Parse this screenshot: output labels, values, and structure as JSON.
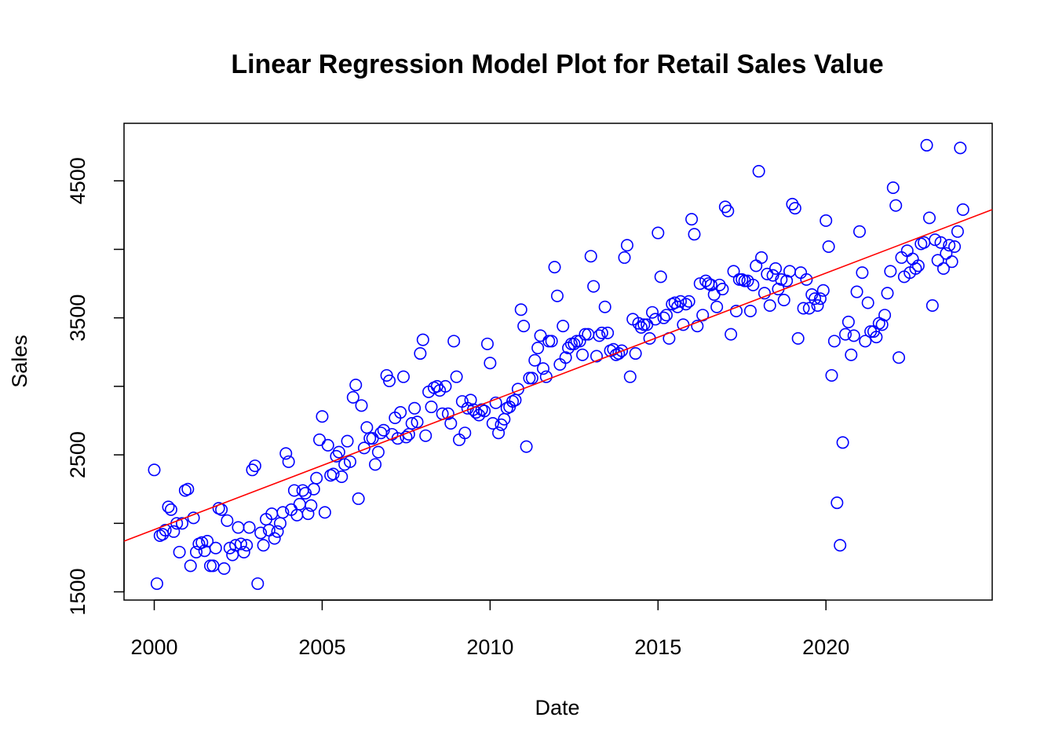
{
  "chart_data": {
    "type": "scatter",
    "title": "Linear Regression Model Plot for Retail Sales Value",
    "xlabel": "Date",
    "ylabel": "Sales",
    "xlim": [
      1999.1,
      2024.95
    ],
    "ylim": [
      1440,
      4920
    ],
    "x_ticks": [
      2000,
      2005,
      2010,
      2015,
      2020
    ],
    "y_ticks": [
      1500,
      2000,
      2500,
      3000,
      3500,
      4000,
      4500
    ],
    "y_tick_labels": [
      "1500",
      "",
      "2500",
      "",
      "3500",
      "",
      "4500"
    ],
    "grid": false,
    "legend": "none",
    "point_color": "#0000ff",
    "line_color": "#ff0000",
    "regression_line": {
      "x": [
        1999.1,
        2024.95
      ],
      "y": [
        1870,
        4290
      ]
    },
    "series": [
      {
        "points": [
          [
            2000.0,
            2390
          ],
          [
            2000.08,
            1560
          ],
          [
            2000.17,
            1910
          ],
          [
            2000.25,
            1920
          ],
          [
            2000.33,
            1950
          ],
          [
            2000.42,
            2120
          ],
          [
            2000.5,
            2100
          ],
          [
            2000.58,
            1940
          ],
          [
            2000.67,
            2000
          ],
          [
            2000.75,
            1790
          ],
          [
            2000.83,
            2000
          ],
          [
            2000.92,
            2240
          ],
          [
            2001.0,
            2250
          ],
          [
            2001.08,
            1690
          ],
          [
            2001.17,
            2040
          ],
          [
            2001.25,
            1790
          ],
          [
            2001.33,
            1850
          ],
          [
            2001.42,
            1860
          ],
          [
            2001.5,
            1800
          ],
          [
            2001.58,
            1870
          ],
          [
            2001.67,
            1690
          ],
          [
            2001.75,
            1690
          ],
          [
            2001.83,
            1820
          ],
          [
            2001.92,
            2110
          ],
          [
            2002.0,
            2100
          ],
          [
            2002.08,
            1670
          ],
          [
            2002.17,
            2020
          ],
          [
            2002.25,
            1820
          ],
          [
            2002.33,
            1770
          ],
          [
            2002.42,
            1840
          ],
          [
            2002.5,
            1970
          ],
          [
            2002.58,
            1850
          ],
          [
            2002.67,
            1790
          ],
          [
            2002.75,
            1840
          ],
          [
            2002.83,
            1970
          ],
          [
            2002.92,
            2390
          ],
          [
            2003.0,
            2420
          ],
          [
            2003.08,
            1560
          ],
          [
            2003.17,
            1930
          ],
          [
            2003.25,
            1840
          ],
          [
            2003.33,
            2030
          ],
          [
            2003.42,
            1950
          ],
          [
            2003.5,
            2070
          ],
          [
            2003.58,
            1890
          ],
          [
            2003.67,
            1940
          ],
          [
            2003.75,
            2000
          ],
          [
            2003.83,
            2080
          ],
          [
            2003.92,
            2510
          ],
          [
            2004.0,
            2450
          ],
          [
            2004.08,
            2100
          ],
          [
            2004.17,
            2240
          ],
          [
            2004.25,
            2060
          ],
          [
            2004.33,
            2140
          ],
          [
            2004.42,
            2240
          ],
          [
            2004.5,
            2220
          ],
          [
            2004.58,
            2070
          ],
          [
            2004.67,
            2130
          ],
          [
            2004.75,
            2250
          ],
          [
            2004.83,
            2330
          ],
          [
            2004.92,
            2610
          ],
          [
            2005.0,
            2780
          ],
          [
            2005.08,
            2080
          ],
          [
            2005.17,
            2570
          ],
          [
            2005.25,
            2350
          ],
          [
            2005.33,
            2360
          ],
          [
            2005.42,
            2490
          ],
          [
            2005.5,
            2520
          ],
          [
            2005.58,
            2340
          ],
          [
            2005.67,
            2430
          ],
          [
            2005.75,
            2600
          ],
          [
            2005.83,
            2450
          ],
          [
            2005.92,
            2920
          ],
          [
            2006.0,
            3010
          ],
          [
            2006.08,
            2180
          ],
          [
            2006.17,
            2860
          ],
          [
            2006.25,
            2550
          ],
          [
            2006.33,
            2700
          ],
          [
            2006.42,
            2620
          ],
          [
            2006.5,
            2620
          ],
          [
            2006.58,
            2430
          ],
          [
            2006.67,
            2520
          ],
          [
            2006.75,
            2660
          ],
          [
            2006.83,
            2680
          ],
          [
            2006.92,
            3080
          ],
          [
            2007.0,
            3040
          ],
          [
            2007.08,
            2650
          ],
          [
            2007.17,
            2770
          ],
          [
            2007.25,
            2620
          ],
          [
            2007.33,
            2810
          ],
          [
            2007.42,
            3070
          ],
          [
            2007.5,
            2630
          ],
          [
            2007.58,
            2650
          ],
          [
            2007.67,
            2730
          ],
          [
            2007.75,
            2840
          ],
          [
            2007.83,
            2740
          ],
          [
            2007.92,
            3240
          ],
          [
            2008.0,
            3340
          ],
          [
            2008.08,
            2640
          ],
          [
            2008.17,
            2960
          ],
          [
            2008.25,
            2850
          ],
          [
            2008.33,
            2990
          ],
          [
            2008.42,
            3000
          ],
          [
            2008.5,
            2970
          ],
          [
            2008.58,
            2800
          ],
          [
            2008.67,
            3000
          ],
          [
            2008.75,
            2800
          ],
          [
            2008.83,
            2730
          ],
          [
            2008.92,
            3330
          ],
          [
            2009.0,
            3070
          ],
          [
            2009.08,
            2610
          ],
          [
            2009.17,
            2890
          ],
          [
            2009.25,
            2660
          ],
          [
            2009.33,
            2840
          ],
          [
            2009.42,
            2900
          ],
          [
            2009.5,
            2830
          ],
          [
            2009.58,
            2810
          ],
          [
            2009.67,
            2790
          ],
          [
            2009.75,
            2830
          ],
          [
            2009.83,
            2820
          ],
          [
            2009.92,
            3310
          ],
          [
            2010.0,
            3170
          ],
          [
            2010.08,
            2730
          ],
          [
            2010.17,
            2880
          ],
          [
            2010.25,
            2660
          ],
          [
            2010.33,
            2720
          ],
          [
            2010.42,
            2760
          ],
          [
            2010.5,
            2840
          ],
          [
            2010.58,
            2850
          ],
          [
            2010.67,
            2890
          ],
          [
            2010.75,
            2900
          ],
          [
            2010.83,
            2980
          ],
          [
            2010.92,
            3560
          ],
          [
            2011.0,
            3440
          ],
          [
            2011.08,
            2560
          ],
          [
            2011.17,
            3060
          ],
          [
            2011.25,
            3060
          ],
          [
            2011.33,
            3190
          ],
          [
            2011.42,
            3280
          ],
          [
            2011.5,
            3370
          ],
          [
            2011.58,
            3130
          ],
          [
            2011.67,
            3070
          ],
          [
            2011.75,
            3330
          ],
          [
            2011.83,
            3330
          ],
          [
            2011.92,
            3870
          ],
          [
            2012.0,
            3660
          ],
          [
            2012.08,
            3160
          ],
          [
            2012.17,
            3440
          ],
          [
            2012.25,
            3210
          ],
          [
            2012.33,
            3280
          ],
          [
            2012.42,
            3310
          ],
          [
            2012.5,
            3310
          ],
          [
            2012.58,
            3330
          ],
          [
            2012.67,
            3330
          ],
          [
            2012.75,
            3230
          ],
          [
            2012.83,
            3380
          ],
          [
            2012.92,
            3380
          ],
          [
            2013.0,
            3950
          ],
          [
            2013.08,
            3730
          ],
          [
            2013.17,
            3220
          ],
          [
            2013.25,
            3370
          ],
          [
            2013.33,
            3390
          ],
          [
            2013.42,
            3580
          ],
          [
            2013.5,
            3390
          ],
          [
            2013.58,
            3260
          ],
          [
            2013.67,
            3270
          ],
          [
            2013.75,
            3230
          ],
          [
            2013.83,
            3240
          ],
          [
            2013.92,
            3260
          ],
          [
            2014.0,
            3940
          ],
          [
            2014.08,
            4030
          ],
          [
            2014.17,
            3070
          ],
          [
            2014.25,
            3490
          ],
          [
            2014.33,
            3240
          ],
          [
            2014.42,
            3460
          ],
          [
            2014.5,
            3430
          ],
          [
            2014.58,
            3450
          ],
          [
            2014.67,
            3450
          ],
          [
            2014.75,
            3350
          ],
          [
            2014.83,
            3540
          ],
          [
            2014.92,
            3490
          ],
          [
            2015.0,
            4120
          ],
          [
            2015.08,
            3800
          ],
          [
            2015.17,
            3500
          ],
          [
            2015.25,
            3520
          ],
          [
            2015.33,
            3350
          ],
          [
            2015.42,
            3600
          ],
          [
            2015.5,
            3610
          ],
          [
            2015.58,
            3580
          ],
          [
            2015.67,
            3620
          ],
          [
            2015.75,
            3450
          ],
          [
            2015.83,
            3600
          ],
          [
            2015.92,
            3620
          ],
          [
            2016.0,
            4220
          ],
          [
            2016.08,
            4110
          ],
          [
            2016.17,
            3440
          ],
          [
            2016.25,
            3750
          ],
          [
            2016.33,
            3520
          ],
          [
            2016.42,
            3770
          ],
          [
            2016.5,
            3750
          ],
          [
            2016.58,
            3740
          ],
          [
            2016.67,
            3670
          ],
          [
            2016.75,
            3580
          ],
          [
            2016.83,
            3740
          ],
          [
            2016.92,
            3710
          ],
          [
            2017.0,
            4310
          ],
          [
            2017.08,
            4280
          ],
          [
            2017.17,
            3380
          ],
          [
            2017.25,
            3840
          ],
          [
            2017.33,
            3550
          ],
          [
            2017.42,
            3780
          ],
          [
            2017.5,
            3780
          ],
          [
            2017.58,
            3770
          ],
          [
            2017.67,
            3770
          ],
          [
            2017.75,
            3550
          ],
          [
            2017.83,
            3740
          ],
          [
            2017.92,
            3880
          ],
          [
            2018.0,
            4570
          ],
          [
            2018.08,
            3940
          ],
          [
            2018.17,
            3680
          ],
          [
            2018.25,
            3820
          ],
          [
            2018.33,
            3590
          ],
          [
            2018.42,
            3810
          ],
          [
            2018.5,
            3860
          ],
          [
            2018.58,
            3710
          ],
          [
            2018.67,
            3780
          ],
          [
            2018.75,
            3630
          ],
          [
            2018.83,
            3770
          ],
          [
            2018.92,
            3840
          ],
          [
            2019.0,
            4330
          ],
          [
            2019.08,
            4300
          ],
          [
            2019.17,
            3350
          ],
          [
            2019.25,
            3830
          ],
          [
            2019.33,
            3570
          ],
          [
            2019.42,
            3780
          ],
          [
            2019.5,
            3570
          ],
          [
            2019.58,
            3670
          ],
          [
            2019.67,
            3640
          ],
          [
            2019.75,
            3590
          ],
          [
            2019.83,
            3640
          ],
          [
            2019.92,
            3700
          ],
          [
            2020.0,
            4210
          ],
          [
            2020.08,
            4020
          ],
          [
            2020.17,
            3080
          ],
          [
            2020.25,
            3330
          ],
          [
            2020.33,
            2150
          ],
          [
            2020.42,
            1840
          ],
          [
            2020.5,
            2590
          ],
          [
            2020.58,
            3380
          ],
          [
            2020.67,
            3470
          ],
          [
            2020.75,
            3230
          ],
          [
            2020.83,
            3370
          ],
          [
            2020.92,
            3690
          ],
          [
            2021.0,
            4130
          ],
          [
            2021.08,
            3830
          ],
          [
            2021.17,
            3330
          ],
          [
            2021.25,
            3610
          ],
          [
            2021.33,
            3400
          ],
          [
            2021.42,
            3400
          ],
          [
            2021.5,
            3360
          ],
          [
            2021.58,
            3460
          ],
          [
            2021.67,
            3450
          ],
          [
            2021.75,
            3520
          ],
          [
            2021.83,
            3680
          ],
          [
            2021.92,
            3840
          ],
          [
            2022.0,
            4450
          ],
          [
            2022.08,
            4320
          ],
          [
            2022.17,
            3210
          ],
          [
            2022.25,
            3940
          ],
          [
            2022.33,
            3800
          ],
          [
            2022.42,
            3990
          ],
          [
            2022.5,
            3830
          ],
          [
            2022.58,
            3930
          ],
          [
            2022.67,
            3860
          ],
          [
            2022.75,
            3880
          ],
          [
            2022.83,
            4040
          ],
          [
            2022.92,
            4050
          ],
          [
            2023.0,
            4760
          ],
          [
            2023.08,
            4230
          ],
          [
            2023.17,
            3590
          ],
          [
            2023.25,
            4070
          ],
          [
            2023.33,
            3920
          ],
          [
            2023.42,
            4050
          ],
          [
            2023.5,
            3860
          ],
          [
            2023.58,
            3970
          ],
          [
            2023.67,
            4030
          ],
          [
            2023.75,
            3910
          ],
          [
            2023.83,
            4020
          ],
          [
            2023.92,
            4130
          ],
          [
            2024.0,
            4740
          ],
          [
            2024.08,
            4290
          ]
        ]
      }
    ]
  }
}
